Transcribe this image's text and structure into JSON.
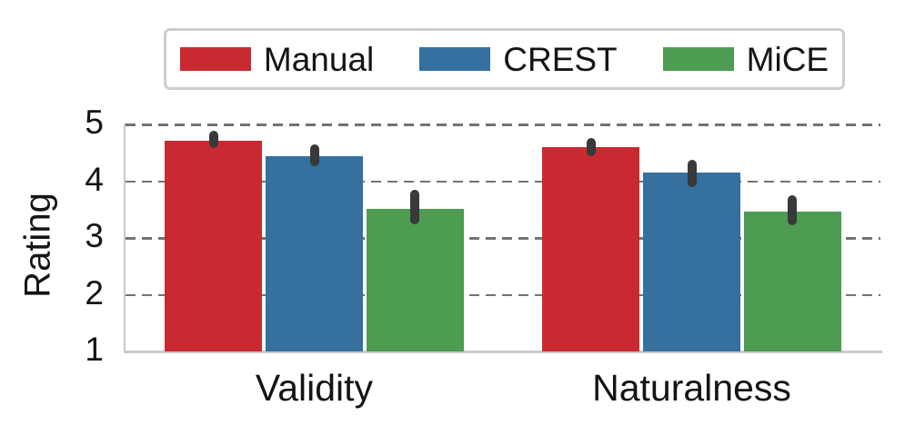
{
  "chart_data": {
    "type": "bar",
    "title": "",
    "categories": [
      "Validity",
      "Naturalness"
    ],
    "series": [
      {
        "name": "Manual",
        "color": "#c92a31",
        "values": [
          4.72,
          4.6
        ],
        "ci": [
          [
            4.59,
            4.89
          ],
          [
            4.45,
            4.77
          ]
        ]
      },
      {
        "name": "CREST",
        "color": "#35709e",
        "values": [
          4.45,
          4.15
        ],
        "ci": [
          [
            4.27,
            4.65
          ],
          [
            3.9,
            4.38
          ]
        ]
      },
      {
        "name": "MiCE",
        "color": "#4e9b52",
        "values": [
          3.52,
          3.47
        ],
        "ci": [
          [
            3.25,
            3.85
          ],
          [
            3.22,
            3.75
          ]
        ]
      }
    ],
    "xlabel": "",
    "ylabel": "Rating",
    "ylim": [
      1,
      5
    ],
    "yticks": [
      1,
      2,
      3,
      4,
      5
    ],
    "grid": "horizontal dashed, at yticks 2-5",
    "legend_position": "top center, horizontal, boxed",
    "error_bar_color": "#37393a",
    "gridline_color": "#737373",
    "spine_color": "#c9c9c9",
    "background_color": "#ffffff"
  }
}
